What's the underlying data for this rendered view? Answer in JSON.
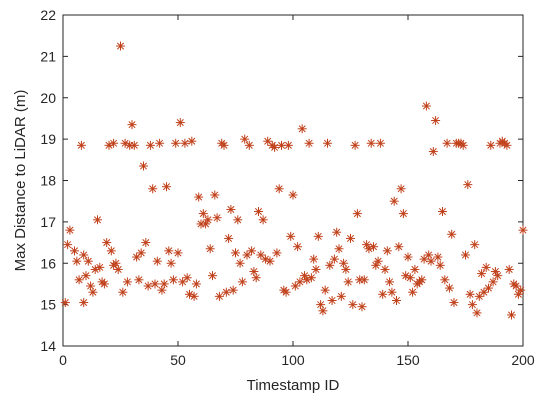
{
  "chart_data": {
    "type": "scatter",
    "title": "",
    "xlabel": "Timestamp ID",
    "ylabel": "Max Distance to LiDAR (m)",
    "xlim": [
      0,
      200
    ],
    "ylim": [
      14,
      22
    ],
    "xticks": [
      0,
      50,
      100,
      150,
      200
    ],
    "yticks": [
      14,
      15,
      16,
      17,
      18,
      19,
      20,
      21,
      22
    ],
    "grid": false,
    "legend": "none",
    "marker": "asterisk",
    "marker_color": "#C0401A",
    "series": [
      {
        "x": [
          1,
          2,
          3,
          5,
          6,
          7,
          8,
          9,
          9,
          10,
          11,
          12,
          13,
          14,
          15,
          16,
          17,
          18,
          19,
          20,
          21,
          22,
          22,
          23,
          24,
          25,
          26,
          27,
          28,
          29,
          30,
          31,
          32,
          33,
          34,
          35,
          36,
          37,
          38,
          39,
          40,
          41,
          42,
          43,
          44,
          45,
          46,
          47,
          48,
          49,
          50,
          51,
          52,
          53,
          54,
          55,
          56,
          57,
          58,
          59,
          60,
          61,
          62,
          63,
          64,
          65,
          66,
          67,
          68,
          69,
          70,
          71,
          72,
          73,
          74,
          75,
          76,
          77,
          78,
          79,
          80,
          81,
          82,
          83,
          84,
          85,
          86,
          87,
          88,
          89,
          90,
          91,
          92,
          93,
          94,
          95,
          96,
          97,
          98,
          99,
          100,
          101,
          102,
          103,
          104,
          105,
          106,
          107,
          108,
          109,
          110,
          111,
          112,
          113,
          114,
          115,
          116,
          117,
          118,
          119,
          120,
          121,
          122,
          123,
          124,
          125,
          126,
          127,
          128,
          129,
          130,
          131,
          132,
          133,
          134,
          135,
          136,
          137,
          138,
          139,
          140,
          141,
          142,
          143,
          144,
          145,
          146,
          147,
          148,
          149,
          150,
          151,
          152,
          153,
          154,
          155,
          156,
          157,
          158,
          159,
          160,
          161,
          162,
          163,
          164,
          165,
          166,
          167,
          168,
          169,
          170,
          171,
          172,
          173,
          174,
          175,
          176,
          177,
          178,
          179,
          180,
          181,
          182,
          183,
          184,
          185,
          186,
          187,
          188,
          189,
          190,
          191,
          192,
          193,
          194,
          195,
          196,
          197,
          198,
          199,
          200
        ],
        "values": [
          15.05,
          16.45,
          16.8,
          16.3,
          16.05,
          15.6,
          18.85,
          16.2,
          15.05,
          15.7,
          16.05,
          15.45,
          15.3,
          15.85,
          17.05,
          15.9,
          15.55,
          15.5,
          16.5,
          18.85,
          16.3,
          15.95,
          18.9,
          16.0,
          15.85,
          21.25,
          15.3,
          18.9,
          15.55,
          18.85,
          19.35,
          18.85,
          16.15,
          15.6,
          16.25,
          18.35,
          16.5,
          15.45,
          18.85,
          17.8,
          15.5,
          16.05,
          18.9,
          15.35,
          15.5,
          17.85,
          16.3,
          16.0,
          15.6,
          18.9,
          16.25,
          19.4,
          15.55,
          18.9,
          15.65,
          15.25,
          18.95,
          15.2,
          15.5,
          17.6,
          16.95,
          17.2,
          16.95,
          17.05,
          16.35,
          15.7,
          17.65,
          17.1,
          15.2,
          18.9,
          18.85,
          15.3,
          16.6,
          17.3,
          15.35,
          16.25,
          17.05,
          16.0,
          15.55,
          19.0,
          16.2,
          18.85,
          16.3,
          15.8,
          15.65,
          17.25,
          16.2,
          17.05,
          16.1,
          18.95,
          16.05,
          18.85,
          18.8,
          16.25,
          17.8,
          18.85,
          15.35,
          15.3,
          18.85,
          16.65,
          17.65,
          15.45,
          16.4,
          15.55,
          19.25,
          15.7,
          15.6,
          18.9,
          15.65,
          16.1,
          15.85,
          16.65,
          15.0,
          14.85,
          15.35,
          18.9,
          15.95,
          15.1,
          16.1,
          16.75,
          16.35,
          15.2,
          16.0,
          15.85,
          15.55,
          16.6,
          15.0,
          18.85,
          17.2,
          15.6,
          14.95,
          15.6,
          16.45,
          16.35,
          18.9,
          16.4,
          15.95,
          16.05,
          18.9,
          15.25,
          15.85,
          16.3,
          15.55,
          15.3,
          17.5,
          15.1,
          16.4,
          17.8,
          17.2,
          15.7,
          16.15,
          15.65,
          15.3,
          15.85,
          15.5,
          15.55,
          15.6,
          16.1,
          19.8,
          16.2,
          16.05,
          18.7,
          19.45,
          16.15,
          15.95,
          17.25,
          15.6,
          18.9,
          15.4,
          16.7,
          15.05,
          18.9,
          18.9,
          18.9,
          18.85,
          16.2,
          17.9,
          15.25,
          15.0,
          16.45,
          14.8,
          15.2,
          15.75,
          15.3,
          15.9,
          15.4,
          18.85,
          15.55,
          15.8,
          15.7,
          18.9,
          18.95,
          18.9,
          18.85,
          15.85,
          14.75,
          15.5,
          15.45,
          15.25,
          15.35,
          16.8
        ]
      }
    ]
  }
}
